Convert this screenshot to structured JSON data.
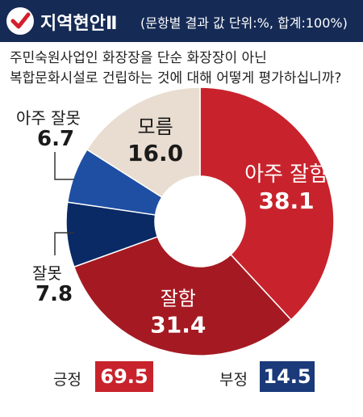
{
  "header": {
    "title": "지역현안Ⅱ",
    "unit_note": "(문항별 결과 값 단위:%, 합계:100%)",
    "check_icon": "check-icon"
  },
  "question": {
    "line1": "주민숙원사업인 화장장을 단순 화장장이 아닌",
    "line2": "복합문화시설로 건립하는 것에 대해 어떻게 평가하십니까?"
  },
  "chart_data": {
    "type": "pie",
    "donut": true,
    "categories": [
      "아주 잘함",
      "잘함",
      "잘못",
      "아주 잘못",
      "모름"
    ],
    "values": [
      38.1,
      31.4,
      7.8,
      6.7,
      16.0
    ],
    "labels": [
      "38.1",
      "31.4",
      "7.8",
      "6.7",
      "16.0"
    ],
    "colors": [
      "#c8232c",
      "#a51a22",
      "#0a2a66",
      "#1e4fa3",
      "#e8ddd0"
    ],
    "start_angle_deg": 0,
    "direction": "clockwise"
  },
  "summary": {
    "positive": {
      "label": "긍정",
      "value": "69.5",
      "color": "#c8232c"
    },
    "negative": {
      "label": "부정",
      "value": "14.5",
      "color": "#1a3a7a"
    }
  }
}
